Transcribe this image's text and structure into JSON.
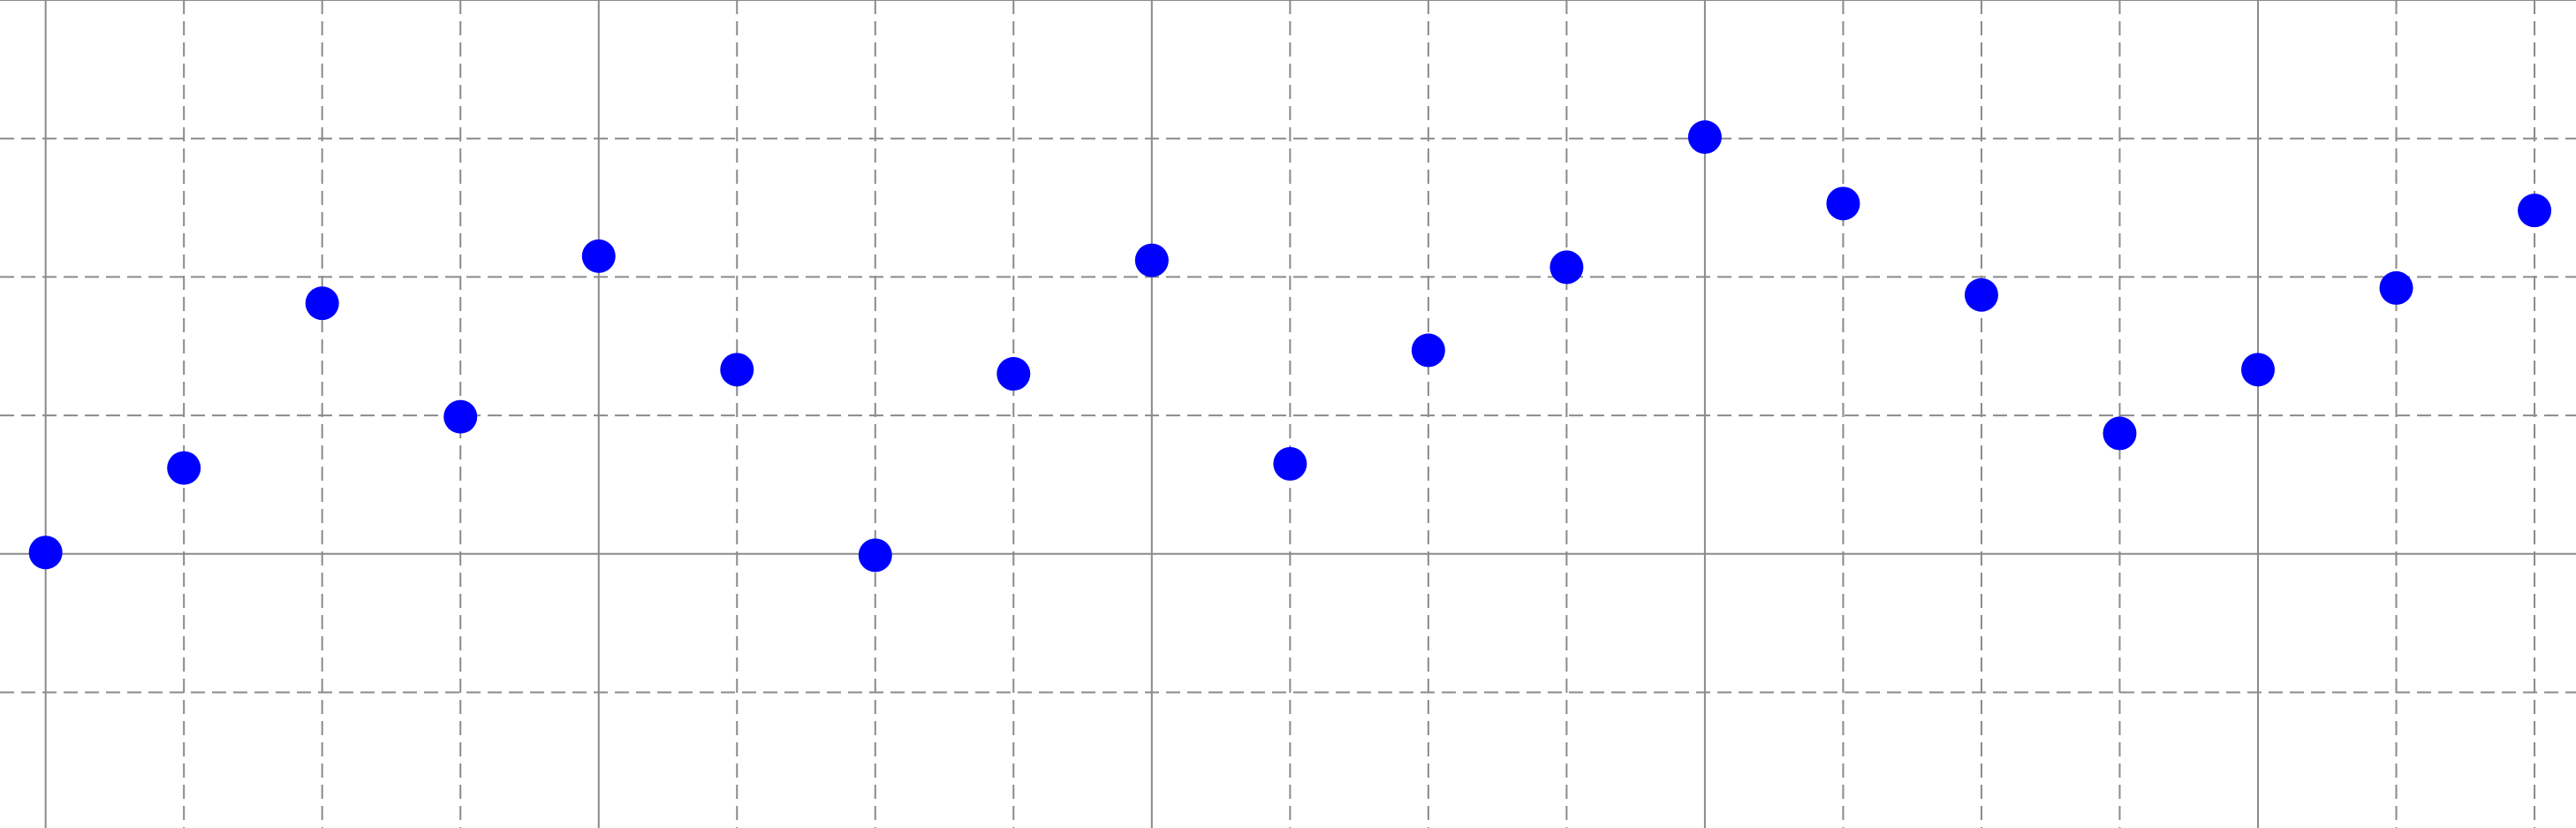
{
  "chart_data": {
    "type": "scatter",
    "title": "",
    "xlabel": "",
    "ylabel": "",
    "marker_color": "#0000ff",
    "grid": true,
    "grid_style": "major solid, minor dashed",
    "xlim": [
      -0.33,
      18.3
    ],
    "ylim": [
      -1.98,
      4.0
    ],
    "x_major_ticks": [
      0,
      4,
      8,
      12,
      16
    ],
    "y_major_ticks": [
      0,
      4
    ],
    "x_minor_ticks": [
      1,
      2,
      3,
      5,
      6,
      7,
      9,
      10,
      11,
      13,
      14,
      15,
      17,
      18
    ],
    "y_minor_ticks": [
      -1,
      1,
      2,
      3
    ],
    "x": [
      0,
      1,
      2,
      3,
      4,
      5,
      6,
      7,
      8,
      9,
      10,
      11,
      12,
      13,
      14,
      15,
      16,
      17,
      18
    ],
    "y": [
      0.01,
      0.62,
      1.81,
      0.99,
      2.15,
      1.33,
      -0.01,
      1.3,
      2.12,
      0.65,
      1.47,
      2.07,
      3.01,
      2.53,
      1.87,
      0.87,
      1.33,
      1.92,
      2.48
    ]
  }
}
